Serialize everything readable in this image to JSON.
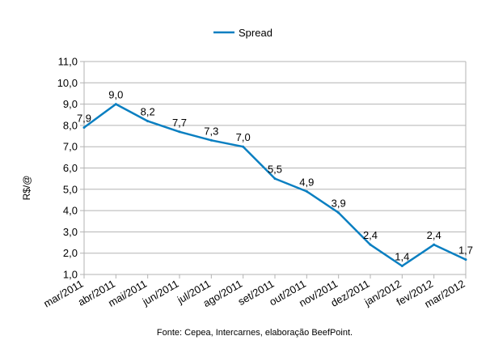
{
  "chart_data": {
    "type": "line",
    "title": "",
    "xlabel": "",
    "ylabel": "R$/@",
    "ylim": [
      1.0,
      11.0
    ],
    "ystep": 1.0,
    "grid": true,
    "legend_position": "top-center",
    "categories": [
      "mar/2011",
      "abr/2011",
      "mai/2011",
      "jun/2011",
      "jul/2011",
      "ago/2011",
      "set/2011",
      "out/2011",
      "nov/2011",
      "dez/2011",
      "jan/2012",
      "fev/2012",
      "mar/2012"
    ],
    "series": [
      {
        "name": "Spread",
        "color": "#0a7fc1",
        "values": [
          7.9,
          9.0,
          8.2,
          7.7,
          7.3,
          7.0,
          5.5,
          4.9,
          3.9,
          2.4,
          1.4,
          2.4,
          1.7
        ],
        "labels": [
          "7,9",
          "9,0",
          "8,2",
          "7,7",
          "7,3",
          "7,0",
          "5,5",
          "4,9",
          "3,9",
          "2,4",
          "1,4",
          "2,4",
          "1,7"
        ]
      }
    ],
    "y_tick_labels": [
      "1,0",
      "2,0",
      "3,0",
      "4,0",
      "5,0",
      "6,0",
      "7,0",
      "8,0",
      "9,0",
      "10,0",
      "11,0"
    ],
    "source_note": "Fonte: Cepea, Intercarnes, elaboração BeefPoint."
  }
}
